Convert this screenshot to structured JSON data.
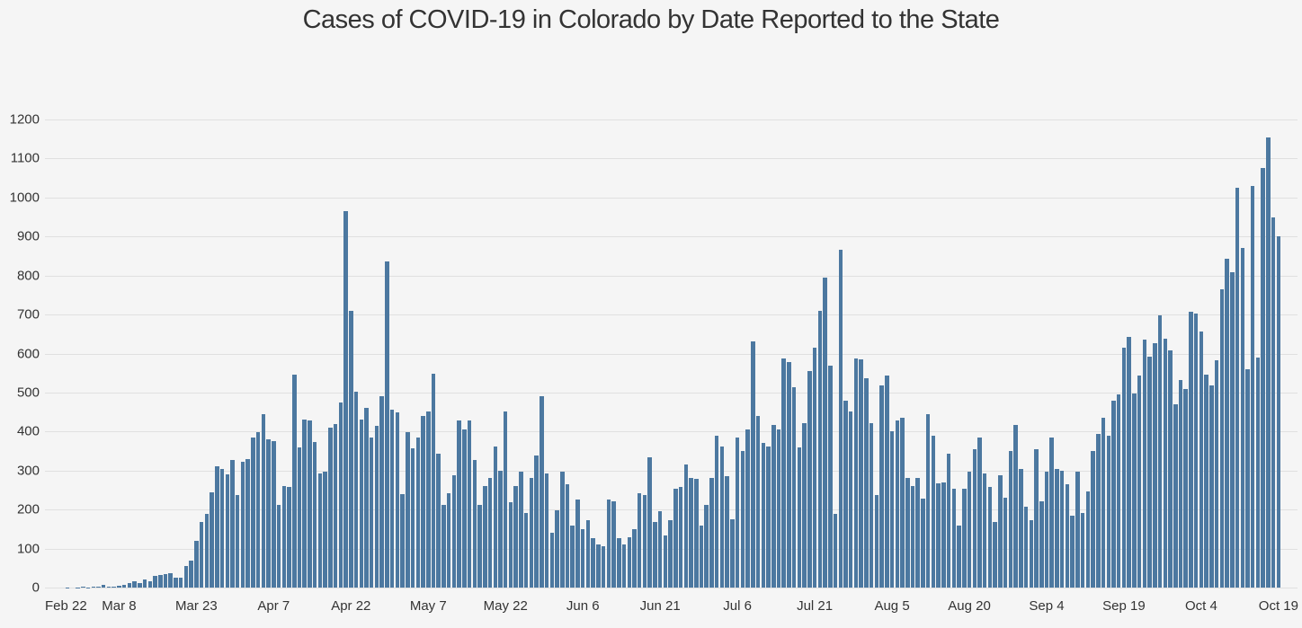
{
  "chart_data": {
    "type": "bar",
    "title": "Cases of COVID-19 in Colorado by Date Reported to the State",
    "xlabel": "",
    "ylabel": "",
    "start_date": "Feb 22",
    "end_date": "Oct 19",
    "cadence": "daily",
    "x_tick_interval_days": 15,
    "x_tick_labels": [
      "Feb 22",
      "Mar 8",
      "Mar 23",
      "Apr 7",
      "Apr 22",
      "May 7",
      "May 22",
      "Jun 6",
      "Jun 21",
      "Jul 6",
      "Jul 21",
      "Aug 5",
      "Aug 20",
      "Sep 4",
      "Sep 19",
      "Oct 4",
      "Oct 19"
    ],
    "x_tick_days": [
      0,
      15,
      30,
      45,
      60,
      75,
      90,
      105,
      120,
      135,
      150,
      165,
      180,
      195,
      210,
      225,
      240
    ],
    "ylim": [
      0,
      1200
    ],
    "y_tick_step": 100,
    "y_tick_labels": [
      "0",
      "100",
      "200",
      "300",
      "400",
      "500",
      "600",
      "700",
      "800",
      "900",
      "1000",
      "1100",
      "1200"
    ],
    "grid": true,
    "legend": false,
    "bar_color": "#4c78a0",
    "background_color": "#f5f5f5",
    "gridline_color": "#e0e0e0",
    "months": [
      {
        "name": "Feb",
        "first_day": 22,
        "last_day": 29
      },
      {
        "name": "Mar",
        "first_day": 1,
        "last_day": 31
      },
      {
        "name": "Apr",
        "first_day": 1,
        "last_day": 30
      },
      {
        "name": "May",
        "first_day": 1,
        "last_day": 31
      },
      {
        "name": "Jun",
        "first_day": 1,
        "last_day": 30
      },
      {
        "name": "Jul",
        "first_day": 1,
        "last_day": 31
      },
      {
        "name": "Aug",
        "first_day": 1,
        "last_day": 31
      },
      {
        "name": "Sep",
        "first_day": 1,
        "last_day": 30
      },
      {
        "name": "Oct",
        "first_day": 1,
        "last_day": 19
      }
    ],
    "series": [
      {
        "name": "Cases",
        "values": [
          0,
          0,
          0,
          0,
          0,
          1,
          0,
          1,
          2,
          1,
          2,
          3,
          8,
          3,
          2,
          4,
          7,
          11,
          17,
          11,
          21,
          17,
          29,
          33,
          34,
          36,
          25,
          26,
          56,
          69,
          120,
          168,
          190,
          245,
          310,
          305,
          290,
          326,
          238,
          323,
          329,
          385,
          399,
          445,
          381,
          375,
          212,
          261,
          257,
          546,
          360,
          430,
          428,
          373,
          292,
          296,
          409,
          419,
          474,
          965,
          710,
          502,
          430,
          460,
          385,
          415,
          490,
          835,
          455,
          450,
          240,
          398,
          358,
          385,
          440,
          451,
          548,
          343,
          211,
          242,
          288,
          428,
          405,
          428,
          327,
          211,
          261,
          281,
          362,
          300,
          451,
          219,
          261,
          296,
          191,
          281,
          339,
          490,
          292,
          141,
          199,
          296,
          265,
          160,
          226,
          149,
          172,
          126,
          110,
          106,
          226,
          222,
          126,
          110,
          129,
          149,
          242,
          238,
          335,
          168,
          195,
          133,
          172,
          253,
          257,
          315,
          281,
          279,
          160,
          211,
          281,
          389,
          362,
          285,
          176,
          385,
          350,
          405,
          630,
          440,
          370,
          362,
          416,
          405,
          587,
          579,
          513,
          360,
          422,
          556,
          614,
          709,
          795,
          569,
          188,
          865,
          478,
          451,
          587,
          584,
          536,
          422,
          238,
          519,
          544,
          401,
          429,
          436,
          282,
          261,
          282,
          228,
          445,
          389,
          267,
          269,
          344,
          253,
          158,
          253,
          296,
          354,
          385,
          292,
          257,
          168,
          288,
          230,
          350,
          416,
          304,
          207,
          172,
          354,
          222,
          296,
          385,
          304,
          300,
          265,
          184,
          296,
          191,
          246,
          350,
          393,
          436,
          389,
          478,
          495,
          614,
          643,
          498,
          544,
          636,
          591,
          626,
          699,
          637,
          608,
          471,
          533,
          509,
          706,
          703,
          657,
          547,
          519,
          583,
          765,
          843,
          809,
          1025,
          870,
          560,
          1030,
          590,
          1075,
          1155,
          950,
          900
        ]
      }
    ]
  }
}
